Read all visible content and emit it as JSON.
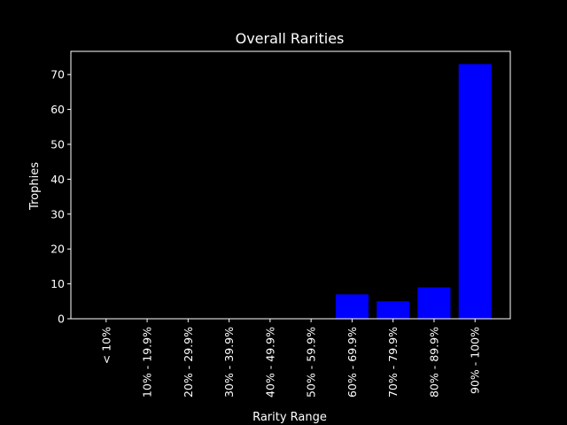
{
  "chart_data": {
    "type": "bar",
    "title": "Overall Rarities",
    "xlabel": "Rarity Range",
    "ylabel": "Trophies",
    "categories": [
      "< 10%",
      "10% - 19.9%",
      "20% - 29.9%",
      "30% - 39.9%",
      "40% - 49.9%",
      "50% - 59.9%",
      "60% - 69.9%",
      "70% - 79.9%",
      "80% - 89.9%",
      "90% - 100%"
    ],
    "values": [
      0,
      0,
      0,
      0,
      0,
      0,
      7,
      5,
      9,
      73
    ],
    "ylim": [
      0,
      76.65
    ],
    "yticks": [
      0,
      10,
      20,
      30,
      40,
      50,
      60,
      70
    ],
    "grid": false,
    "colors": {
      "bar": "#0000ff",
      "background": "#000000",
      "axes": "#ffffff",
      "text": "#ffffff"
    }
  }
}
